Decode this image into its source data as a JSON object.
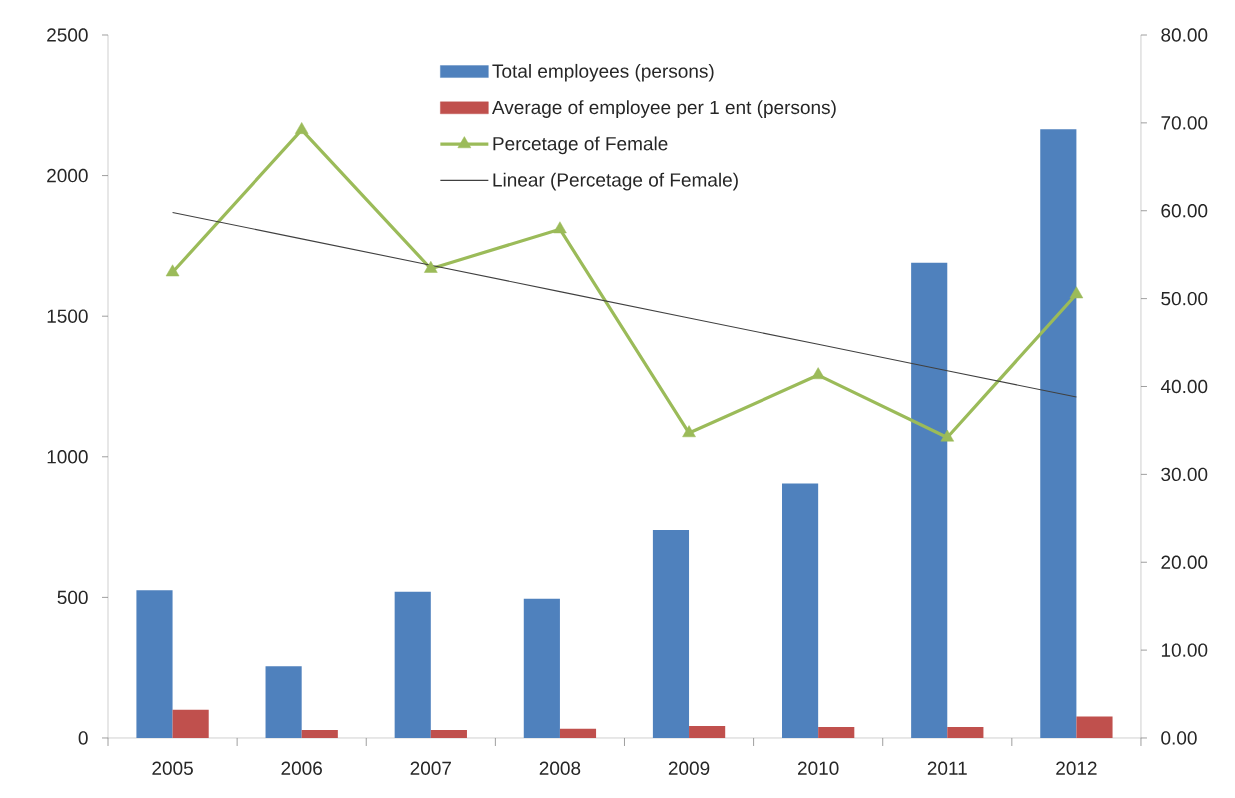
{
  "chart_data": {
    "type": "bar",
    "categories": [
      "2005",
      "2006",
      "2007",
      "2008",
      "2009",
      "2010",
      "2011",
      "2012"
    ],
    "series": [
      {
        "name": "Total employees (persons)",
        "color": "#4f81bd",
        "values": [
          525,
          255,
          520,
          495,
          740,
          905,
          1690,
          2165
        ]
      },
      {
        "name": "Average of employee per 1 ent (persons)",
        "color": "#c0504d",
        "values": [
          100,
          28,
          28,
          33,
          43,
          39,
          39,
          76
        ]
      },
      {
        "name": "Percetage of Female",
        "type": "line",
        "axis": "y2",
        "color": "#9bbb59",
        "marker": "triangle",
        "values": [
          53.0,
          69.2,
          53.4,
          57.9,
          34.7,
          41.3,
          34.2,
          50.5
        ]
      },
      {
        "name": "Linear (Percetage of Female)",
        "type": "line",
        "axis": "y2",
        "color": "#404040",
        "marker": "none",
        "values": [
          59.8,
          56.8,
          53.8,
          50.8,
          47.8,
          44.8,
          41.8,
          38.8
        ]
      }
    ],
    "ylim": [
      0,
      2500
    ],
    "yticks": [
      0,
      500,
      1000,
      1500,
      2000,
      2500
    ],
    "y2lim": [
      0,
      80
    ],
    "y2ticks": [
      {
        "value": 0,
        "label": "0.00"
      },
      {
        "value": 10,
        "label": "10.00"
      },
      {
        "value": 20,
        "label": "20.00"
      },
      {
        "value": 30,
        "label": "30.00"
      },
      {
        "value": 40,
        "label": "40.00"
      },
      {
        "value": 50,
        "label": "50.00"
      },
      {
        "value": 60,
        "label": "60.00"
      },
      {
        "value": 70,
        "label": "70.00"
      },
      {
        "value": 80,
        "label": "80.00"
      }
    ],
    "legend": "top"
  }
}
